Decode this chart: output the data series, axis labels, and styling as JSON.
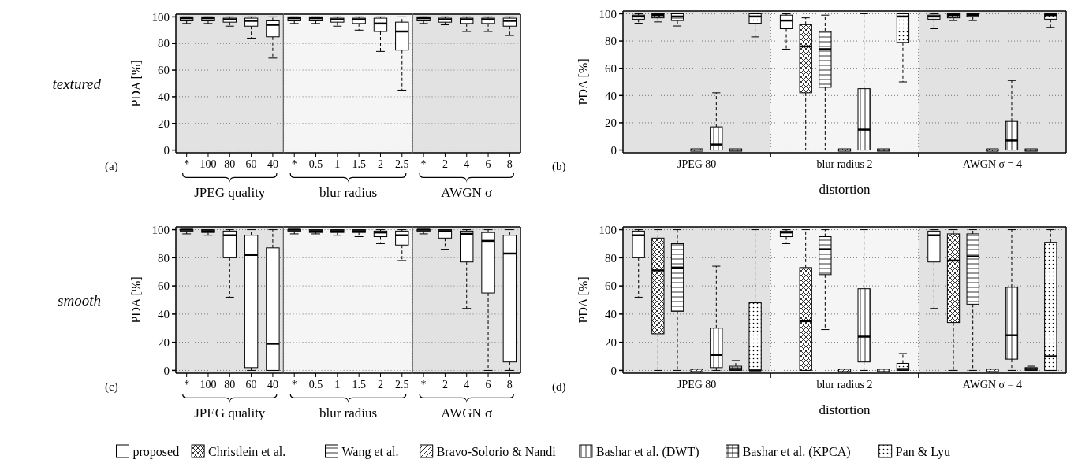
{
  "chart_data": [
    {
      "type": "box",
      "ylabel": "PDA [%]",
      "xlabel": "JPEG quality",
      "annotations": [
        "textured",
        "(a)"
      ],
      "categories": [
        "*",
        "100",
        "80",
        "60",
        "40"
      ],
      "ylim": [
        -2,
        102
      ],
      "yticks": [
        0,
        20,
        40,
        60,
        80,
        100
      ],
      "grid": "y",
      "color": "#ffffff",
      "bands": [
        {
          "axis": "x",
          "from": "*",
          "to": "40",
          "color": "#e2e2e2"
        }
      ],
      "boxes": [
        {
          "low": 95,
          "q1": 97,
          "median": 99,
          "q3": 100,
          "high": 100
        },
        {
          "low": 95,
          "q1": 97,
          "median": 99,
          "q3": 100,
          "high": 100
        },
        {
          "low": 93,
          "q1": 96,
          "median": 98,
          "q3": 99,
          "high": 100
        },
        {
          "low": 84,
          "q1": 93,
          "median": 97,
          "q3": 99,
          "high": 100
        },
        {
          "low": 69,
          "q1": 85,
          "median": 94,
          "q3": 97,
          "high": 100
        }
      ]
    },
    {
      "type": "box",
      "xlabel": "blur radius",
      "categories": [
        "*",
        "0.5",
        "1",
        "1.5",
        "2",
        "2.5"
      ],
      "ylim": [
        -2,
        102
      ],
      "yticks": [
        0,
        20,
        40,
        60,
        80,
        100
      ],
      "tick_labels": "x",
      "grid": "y",
      "color": "#ffffff",
      "bands": [
        {
          "axis": "x",
          "from": "*",
          "to": "2.5",
          "color": "#f5f5f5"
        }
      ],
      "boxes": [
        {
          "low": 95,
          "q1": 97,
          "median": 99,
          "q3": 100,
          "high": 100
        },
        {
          "low": 95,
          "q1": 97,
          "median": 99,
          "q3": 100,
          "high": 100
        },
        {
          "low": 93,
          "q1": 96,
          "median": 98,
          "q3": 99,
          "high": 100
        },
        {
          "low": 90,
          "q1": 95,
          "median": 98,
          "q3": 99,
          "high": 100
        },
        {
          "low": 74,
          "q1": 89,
          "median": 95,
          "q3": 99,
          "high": 100
        },
        {
          "low": 45,
          "q1": 75,
          "median": 89,
          "q3": 96,
          "high": 100
        }
      ]
    },
    {
      "type": "box",
      "xlabel": "AWGN σ",
      "categories": [
        "*",
        "2",
        "4",
        "6",
        "8"
      ],
      "ylim": [
        -2,
        102
      ],
      "yticks": [
        0,
        20,
        40,
        60,
        80,
        100
      ],
      "tick_labels": "x",
      "grid": "y",
      "color": "#ffffff",
      "bands": [
        {
          "axis": "x",
          "from": "*",
          "to": "8",
          "color": "#e2e2e2"
        }
      ],
      "boxes": [
        {
          "low": 95,
          "q1": 97,
          "median": 99,
          "q3": 100,
          "high": 100
        },
        {
          "low": 94,
          "q1": 96,
          "median": 98,
          "q3": 99,
          "high": 100
        },
        {
          "low": 89,
          "q1": 95,
          "median": 98,
          "q3": 99,
          "high": 100
        },
        {
          "low": 89,
          "q1": 95,
          "median": 98,
          "q3": 99,
          "high": 100
        },
        {
          "low": 86,
          "q1": 93,
          "median": 97,
          "q3": 99,
          "high": 100
        }
      ]
    },
    {
      "type": "box",
      "ylabel": "PDA [%]",
      "xlabel": "distortion",
      "annotations": [
        "(b)"
      ],
      "categories": [
        "JPEG 80",
        "blur radius 2",
        "AWGN σ = 4"
      ],
      "ylim": [
        -2,
        102
      ],
      "yticks": [
        0,
        20,
        40,
        60,
        80,
        100
      ],
      "grid": "y",
      "bands": [
        {
          "axis": "x",
          "from": "JPEG 80",
          "to": "JPEG 80",
          "color": "#e2e2e2"
        },
        {
          "axis": "x",
          "from": "blur radius 2",
          "to": "blur radius 2",
          "color": "#f5f5f5"
        },
        {
          "axis": "x",
          "from": "AWGN σ = 4",
          "to": "AWGN σ = 4",
          "color": "#e2e2e2"
        }
      ],
      "series": [
        {
          "color": "#ffffff",
          "boxes": [
            {
              "low": 93,
              "q1": 96,
              "median": 98,
              "q3": 99,
              "high": 100
            },
            {
              "low": 74,
              "q1": 89,
              "median": 95,
              "q3": 99,
              "high": 100
            },
            {
              "low": 89,
              "q1": 96,
              "median": 98,
              "q3": 99,
              "high": 100
            }
          ]
        },
        {
          "color": "#000000",
          "boxes": [
            {
              "low": 94,
              "q1": 97,
              "median": 99,
              "q3": 100,
              "high": 100
            },
            {
              "low": 0,
              "q1": 42,
              "median": 76,
              "q3": 92,
              "high": 97
            },
            {
              "low": 95,
              "q1": 97,
              "median": 99,
              "q3": 100,
              "high": 100
            }
          ]
        },
        {
          "color": "#000000",
          "boxes": [
            {
              "low": 91,
              "q1": 95,
              "median": 98,
              "q3": 100,
              "high": 100
            },
            {
              "low": 0,
              "q1": 46,
              "median": 74,
              "q3": 87,
              "high": 99
            },
            {
              "low": 95,
              "q1": 98,
              "median": 99,
              "q3": 100,
              "high": 100
            }
          ]
        },
        {
          "color": "#000000",
          "boxes": [
            {
              "low": 0,
              "q1": 0,
              "median": 0,
              "q3": 0,
              "high": 0
            },
            {
              "low": 0,
              "q1": 0,
              "median": 0,
              "q3": 0,
              "high": 0
            },
            {
              "low": 0,
              "q1": 0,
              "median": 0,
              "q3": 0,
              "high": 0
            }
          ]
        },
        {
          "color": "#000000",
          "boxes": [
            {
              "low": 0,
              "q1": 0,
              "median": 4,
              "q3": 17,
              "high": 42
            },
            {
              "low": 0,
              "q1": 0,
              "median": 15,
              "q3": 45,
              "high": 100
            },
            {
              "low": 0,
              "q1": 0,
              "median": 7,
              "q3": 21,
              "high": 51
            }
          ]
        },
        {
          "color": "#000000",
          "boxes": [
            {
              "low": 0,
              "q1": 0,
              "median": 0,
              "q3": 0,
              "high": 0
            },
            {
              "low": 0,
              "q1": 0,
              "median": 0,
              "q3": 0,
              "high": 0
            },
            {
              "low": 0,
              "q1": 0,
              "median": 0,
              "q3": 0,
              "high": 0
            }
          ]
        },
        {
          "color": "#000000",
          "boxes": [
            {
              "low": 83,
              "q1": 93,
              "median": 98,
              "q3": 100,
              "high": 100
            },
            {
              "low": 50,
              "q1": 79,
              "median": 98,
              "q3": 100,
              "high": 100
            },
            {
              "low": 90,
              "q1": 96,
              "median": 99,
              "q3": 100,
              "high": 100
            }
          ]
        }
      ]
    },
    {
      "type": "box",
      "ylabel": "PDA [%]",
      "xlabel": "JPEG quality",
      "annotations": [
        "smooth",
        "(c)"
      ],
      "categories": [
        "*",
        "100",
        "80",
        "60",
        "40"
      ],
      "ylim": [
        -2,
        102
      ],
      "yticks": [
        0,
        20,
        40,
        60,
        80,
        100
      ],
      "grid": "y",
      "color": "#ffffff",
      "bands": [
        {
          "axis": "x",
          "from": "*",
          "to": "40",
          "color": "#e2e2e2"
        }
      ],
      "boxes": [
        {
          "low": 97,
          "q1": 99,
          "median": 100,
          "q3": 100,
          "high": 100
        },
        {
          "low": 96,
          "q1": 98,
          "median": 99,
          "q3": 100,
          "high": 100
        },
        {
          "low": 52,
          "q1": 80,
          "median": 96,
          "q3": 99,
          "high": 100
        },
        {
          "low": 0,
          "q1": 2,
          "median": 82,
          "q3": 96,
          "high": 100
        },
        {
          "low": 0,
          "q1": 0,
          "median": 19,
          "q3": 87,
          "high": 100
        }
      ]
    },
    {
      "type": "box",
      "xlabel": "blur radius",
      "categories": [
        "*",
        "0.5",
        "1",
        "1.5",
        "2",
        "2.5"
      ],
      "ylim": [
        -2,
        102
      ],
      "yticks": [
        0,
        20,
        40,
        60,
        80,
        100
      ],
      "tick_labels": "x",
      "grid": "y",
      "color": "#ffffff",
      "bands": [
        {
          "axis": "x",
          "from": "*",
          "to": "2.5",
          "color": "#f5f5f5"
        }
      ],
      "boxes": [
        {
          "low": 97,
          "q1": 99,
          "median": 100,
          "q3": 100,
          "high": 100
        },
        {
          "low": 97,
          "q1": 98,
          "median": 99,
          "q3": 100,
          "high": 100
        },
        {
          "low": 96,
          "q1": 98,
          "median": 99,
          "q3": 100,
          "high": 100
        },
        {
          "low": 95,
          "q1": 98,
          "median": 99,
          "q3": 100,
          "high": 100
        },
        {
          "low": 90,
          "q1": 95,
          "median": 98,
          "q3": 99,
          "high": 100
        },
        {
          "low": 78,
          "q1": 89,
          "median": 96,
          "q3": 99,
          "high": 100
        }
      ]
    },
    {
      "type": "box",
      "xlabel": "AWGN σ",
      "categories": [
        "*",
        "2",
        "4",
        "6",
        "8"
      ],
      "ylim": [
        -2,
        102
      ],
      "yticks": [
        0,
        20,
        40,
        60,
        80,
        100
      ],
      "tick_labels": "x",
      "grid": "y",
      "color": "#ffffff",
      "bands": [
        {
          "axis": "x",
          "from": "*",
          "to": "8",
          "color": "#e2e2e2"
        }
      ],
      "boxes": [
        {
          "low": 97,
          "q1": 99,
          "median": 100,
          "q3": 100,
          "high": 100
        },
        {
          "low": 86,
          "q1": 94,
          "median": 99,
          "q3": 100,
          "high": 100
        },
        {
          "low": 44,
          "q1": 77,
          "median": 97,
          "q3": 99,
          "high": 100
        },
        {
          "low": 0,
          "q1": 55,
          "median": 92,
          "q3": 98,
          "high": 100
        },
        {
          "low": 0,
          "q1": 6,
          "median": 83,
          "q3": 96,
          "high": 100
        }
      ]
    },
    {
      "type": "box",
      "ylabel": "PDA [%]",
      "xlabel": "distortion",
      "annotations": [
        "(d)"
      ],
      "categories": [
        "JPEG 80",
        "blur radius 2",
        "AWGN σ = 4"
      ],
      "ylim": [
        -2,
        102
      ],
      "yticks": [
        0,
        20,
        40,
        60,
        80,
        100
      ],
      "grid": "y",
      "legend": "bottom",
      "bands": [
        {
          "axis": "x",
          "from": "JPEG 80",
          "to": "JPEG 80",
          "color": "#e2e2e2"
        },
        {
          "axis": "x",
          "from": "blur radius 2",
          "to": "blur radius 2",
          "color": "#f5f5f5"
        },
        {
          "axis": "x",
          "from": "AWGN σ = 4",
          "to": "AWGN σ = 4",
          "color": "#e2e2e2"
        }
      ],
      "series": [
        {
          "name": "proposed",
          "color": "#ffffff",
          "boxes": [
            {
              "low": 52,
              "q1": 80,
              "median": 96,
              "q3": 99,
              "high": 100
            },
            {
              "low": 90,
              "q1": 95,
              "median": 98,
              "q3": 99,
              "high": 100
            },
            {
              "low": 44,
              "q1": 77,
              "median": 96,
              "q3": 99,
              "high": 100
            }
          ]
        },
        {
          "name": "Christlein et al.",
          "color": "#000000",
          "boxes": [
            {
              "low": 0,
              "q1": 26,
              "median": 71,
              "q3": 94,
              "high": 100
            },
            {
              "low": 0,
              "q1": 0,
              "median": 35,
              "q3": 73,
              "high": 100
            },
            {
              "low": 0,
              "q1": 34,
              "median": 78,
              "q3": 97,
              "high": 100
            }
          ]
        },
        {
          "name": "Wang et al.",
          "color": "#000000",
          "boxes": [
            {
              "low": 0,
              "q1": 42,
              "median": 73,
              "q3": 90,
              "high": 100
            },
            {
              "low": 29,
              "q1": 68,
              "median": 86,
              "q3": 95,
              "high": 100
            },
            {
              "low": 0,
              "q1": 47,
              "median": 81,
              "q3": 97,
              "high": 100
            }
          ]
        },
        {
          "name": "Bravo-Solorio & Nandi",
          "color": "#000000",
          "boxes": [
            {
              "low": 0,
              "q1": 0,
              "median": 0,
              "q3": 0,
              "high": 0
            },
            {
              "low": 0,
              "q1": 0,
              "median": 0,
              "q3": 0,
              "high": 0
            },
            {
              "low": 0,
              "q1": 0,
              "median": 0,
              "q3": 0,
              "high": 0
            }
          ]
        },
        {
          "name": "Bashar et al. (DWT)",
          "color": "#000000",
          "boxes": [
            {
              "low": 0,
              "q1": 2,
              "median": 11,
              "q3": 30,
              "high": 74
            },
            {
              "low": 0,
              "q1": 6,
              "median": 24,
              "q3": 58,
              "high": 100
            },
            {
              "low": 0,
              "q1": 8,
              "median": 25,
              "q3": 59,
              "high": 100
            }
          ]
        },
        {
          "name": "Bashar et al. (KPCA)",
          "color": "#000000",
          "boxes": [
            {
              "low": 0,
              "q1": 0,
              "median": 1,
              "q3": 3,
              "high": 7
            },
            {
              "low": 0,
              "q1": 0,
              "median": 0,
              "q3": 0,
              "high": 0
            },
            {
              "low": 0,
              "q1": 0,
              "median": 1,
              "q3": 2,
              "high": 3
            }
          ]
        },
        {
          "name": "Pan & Lyu",
          "color": "#000000",
          "boxes": [
            {
              "low": 0,
              "q1": 0,
              "median": 0,
              "q3": 48,
              "high": 100
            },
            {
              "low": 0,
              "q1": 0,
              "median": 1,
              "q3": 5,
              "high": 12
            },
            {
              "low": 0,
              "q1": 0,
              "median": 10,
              "q3": 91,
              "high": 100
            }
          ]
        }
      ]
    }
  ]
}
